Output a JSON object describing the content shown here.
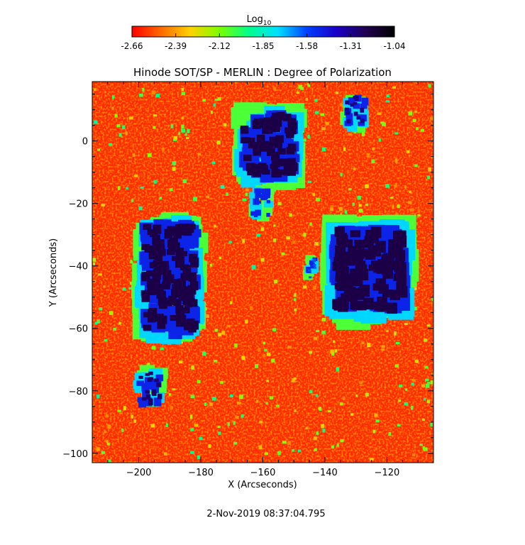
{
  "chart_data": {
    "type": "heatmap",
    "title": "Hinode SOT/SP - MERLIN : Degree of Polarization",
    "xlabel": "X (Arcseconds)",
    "ylabel": "Y (Arcseconds)",
    "xlim": [
      -215,
      -105
    ],
    "ylim": [
      -103,
      19
    ],
    "x_ticks": [
      -200,
      -180,
      -160,
      -140,
      -120
    ],
    "y_ticks": [
      0,
      -20,
      -40,
      -60,
      -80,
      -100
    ],
    "colorbar": {
      "label": "Log",
      "label_subscript": "10",
      "range": [
        -2.66,
        -1.04
      ],
      "ticks": [
        "-2.66",
        "-2.39",
        "-2.12",
        "-1.85",
        "-1.58",
        "-1.31",
        "-1.04"
      ],
      "colormap": [
        "#ff0000",
        "#ff6a00",
        "#ffd200",
        "#7dff00",
        "#00ff8a",
        "#00e0ff",
        "#0040ff",
        "#1a00c8",
        "#200050",
        "#000000"
      ]
    },
    "background_level": -2.6,
    "strong_polarization_regions": [
      {
        "x": [
          -166,
          -150
        ],
        "y": [
          -11,
          8
        ],
        "peak": -1.2
      },
      {
        "x": [
          -198,
          -182
        ],
        "y": [
          -61,
          -27
        ],
        "peak": -1.2
      },
      {
        "x": [
          -136,
          -115
        ],
        "y": [
          -54,
          -29
        ],
        "peak": -1.2
      },
      {
        "x": [
          -200,
          -193
        ],
        "y": [
          -84,
          -74
        ],
        "peak": -1.25
      },
      {
        "x": [
          -133,
          -127
        ],
        "y": [
          5,
          14
        ],
        "peak": -1.3
      },
      {
        "x": [
          -163,
          -158
        ],
        "y": [
          -24,
          -16
        ],
        "peak": -1.5
      },
      {
        "x": [
          -146,
          -143
        ],
        "y": [
          -44,
          -38
        ],
        "peak": -1.6
      }
    ],
    "timestamp": "2-Nov-2019 08:37:04.795"
  }
}
